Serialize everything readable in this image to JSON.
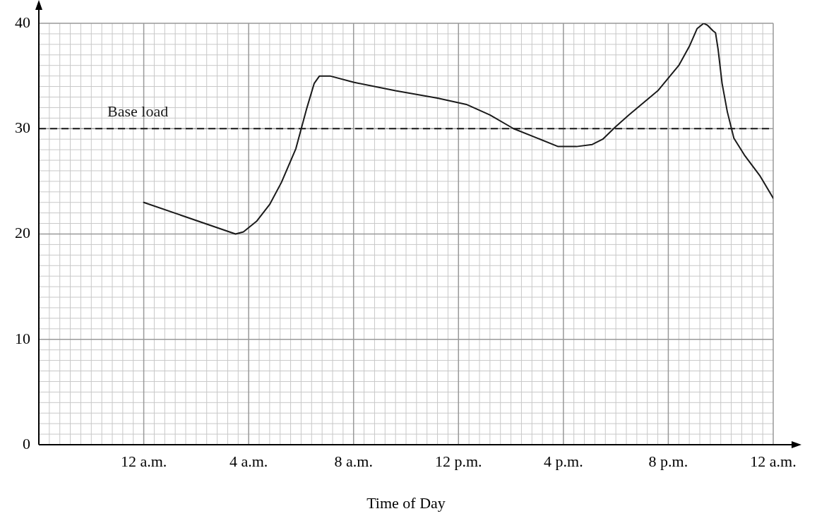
{
  "chart_data": {
    "type": "line",
    "xlabel": "Time of Day",
    "x": [
      "--01-02T00:00",
      "--01-02T03:30",
      "--01-02T03:48",
      "--01-02T04:18",
      "--01-02T04:48",
      "--01-02T05:15",
      "--01-02T05:48",
      "--01-02T06:12",
      "--01-02T06:30",
      "--01-02T06:42",
      "--01-02T07:06",
      "--01-02T08:00",
      "--01-02T09:36",
      "--01-02T11:12",
      "--01-02T12:18",
      "--01-02T13:12",
      "--01-02T14:06",
      "--01-02T15:00",
      "--01-02T15:48",
      "--01-02T16:30",
      "--01-02T17:06",
      "--01-02T17:30",
      "--01-02T18:00",
      "--01-02T18:30",
      "--01-02T19:36",
      "--01-02T20:24",
      "--01-02T20:48",
      "--01-02T21:06",
      "--01-02T21:21",
      "--01-02T21:30",
      "--01-02T21:42",
      "--01-02T21:48",
      "--01-02T21:54",
      "--01-02T22:03",
      "--01-02T22:15",
      "--01-02T22:30",
      "--01-02T22:54",
      "--01-02T23:30",
      "--01-03T00:00"
    ],
    "series": [
      {
        "color": "#1a1a1a",
        "values": [
          23,
          20,
          20.2,
          21.2,
          22.8,
          24.9,
          28.1,
          31.8,
          34.3,
          35,
          35,
          34.4,
          33.6,
          32.9,
          32.3,
          31.3,
          30,
          29.1,
          28.3,
          28.3,
          28.5,
          29,
          30.2,
          31.3,
          33.6,
          36,
          37.8,
          39.5,
          40,
          39.8,
          39.3,
          39.1,
          37.5,
          34.3,
          31.6,
          29.1,
          27.5,
          25.5,
          23.4
        ]
      }
    ],
    "xlim": [
      "--01-01T20:00",
      "--01-03T00:00"
    ],
    "xticks": [
      {
        "value": "--01-02T00:00",
        "label": "12 a.m."
      },
      {
        "value": "--01-02T04:00",
        "label": "4 a.m."
      },
      {
        "value": "--01-02T08:00",
        "label": "8 a.m."
      },
      {
        "value": "--01-02T12:00",
        "label": "12 p.m."
      },
      {
        "value": "--01-02T16:00",
        "label": "4 p.m."
      },
      {
        "value": "--01-02T20:00",
        "label": "8 p.m."
      },
      {
        "value": "--01-03T00:00",
        "label": "12 a.m."
      }
    ],
    "ylim": [
      0,
      40
    ],
    "yticks": [
      0,
      10,
      20,
      30,
      40
    ],
    "ref_lines": [
      {
        "axis": "y",
        "value": 30,
        "label": "Base load",
        "color": "#1a1a1a",
        "line_style": "dashed"
      }
    ],
    "grid": true,
    "legend": false,
    "marker": "none",
    "line_style": "solid"
  }
}
